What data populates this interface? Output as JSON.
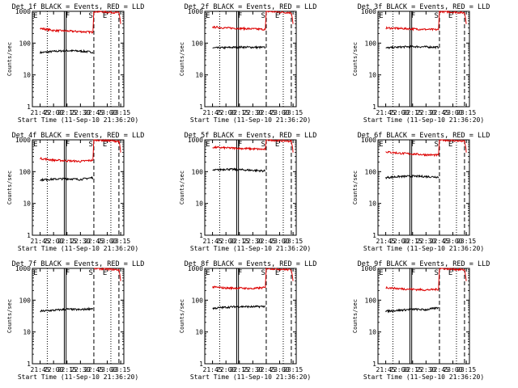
{
  "common": {
    "ylabel": "Counts/sec",
    "xlabel": "Start Time (11-Sep-10 21:36:20)",
    "x_tick_labels": [
      "21:45",
      "22:00",
      "22:15",
      "22:30",
      "22:45",
      "23:00",
      "23:15"
    ],
    "y_tick_labels": [
      "1",
      "10",
      "100",
      "1000"
    ],
    "marker_labels": [
      "E",
      "F",
      "S",
      "E"
    ],
    "colors": {
      "events": "#000000",
      "lld": "#dd0000",
      "background": "#ffffff",
      "axes": "#000000"
    }
  },
  "chart_data": [
    {
      "type": "line",
      "title": "Det 1f BLACK = Events, RED = LLD",
      "xlabel": "Start Time (11-Sep-10 21:36:20)",
      "ylabel": "Counts/sec",
      "yscale": "log",
      "ylim": [
        1,
        1000
      ],
      "x_ticks": [
        "21:45",
        "22:00",
        "22:15",
        "22:30",
        "22:45",
        "23:00",
        "23:15"
      ],
      "series": [
        {
          "name": "Events",
          "color": "#000000",
          "x": [
            "21:45",
            "22:00",
            "22:15",
            "22:30",
            "22:44"
          ],
          "values": [
            50,
            55,
            58,
            56,
            52
          ]
        },
        {
          "name": "LLD",
          "color": "#dd0000",
          "x": [
            "21:45",
            "22:00",
            "22:15",
            "22:30",
            "22:44",
            "22:45",
            "23:13",
            "23:15"
          ],
          "values": [
            290,
            250,
            240,
            230,
            220,
            1000,
            900,
            400
          ]
        }
      ]
    },
    {
      "type": "line",
      "title": "Det 2f BLACK = Events, RED = LLD",
      "xlabel": "Start Time (11-Sep-10 21:36:20)",
      "ylabel": "Counts/sec",
      "yscale": "log",
      "ylim": [
        1,
        1000
      ],
      "x_ticks": [
        "21:45",
        "22:00",
        "22:15",
        "22:30",
        "22:45",
        "23:00",
        "23:15"
      ],
      "series": [
        {
          "name": "Events",
          "color": "#000000",
          "x": [
            "21:45",
            "22:00",
            "22:15",
            "22:30",
            "22:44"
          ],
          "values": [
            70,
            72,
            75,
            74,
            73
          ]
        },
        {
          "name": "LLD",
          "color": "#dd0000",
          "x": [
            "21:45",
            "22:00",
            "22:15",
            "22:30",
            "22:44",
            "22:45",
            "23:13",
            "23:15"
          ],
          "values": [
            320,
            300,
            290,
            280,
            270,
            1000,
            900,
            400
          ]
        }
      ]
    },
    {
      "type": "line",
      "title": "Det 3f BLACK = Events, RED = LLD",
      "xlabel": "Start Time (11-Sep-10 21:36:20)",
      "ylabel": "Counts/sec",
      "yscale": "log",
      "ylim": [
        1,
        1000
      ],
      "x_ticks": [
        "21:45",
        "22:00",
        "22:15",
        "22:30",
        "22:45",
        "23:00",
        "23:15"
      ],
      "series": [
        {
          "name": "Events",
          "color": "#000000",
          "x": [
            "21:45",
            "22:00",
            "22:15",
            "22:30",
            "22:44"
          ],
          "values": [
            70,
            75,
            78,
            76,
            74
          ]
        },
        {
          "name": "LLD",
          "color": "#dd0000",
          "x": [
            "21:45",
            "22:00",
            "22:15",
            "22:30",
            "22:44",
            "22:45",
            "23:13",
            "23:15"
          ],
          "values": [
            300,
            290,
            280,
            270,
            265,
            1000,
            900,
            400
          ]
        }
      ]
    },
    {
      "type": "line",
      "title": "Det 4f BLACK = Events, RED = LLD",
      "xlabel": "Start Time (11-Sep-10 21:36:20)",
      "ylabel": "Counts/sec",
      "yscale": "log",
      "ylim": [
        1,
        1000
      ],
      "x_ticks": [
        "21:45",
        "22:00",
        "22:15",
        "22:30",
        "22:45",
        "23:00",
        "23:15"
      ],
      "series": [
        {
          "name": "Events",
          "color": "#000000",
          "x": [
            "21:45",
            "22:00",
            "22:15",
            "22:30",
            "22:44"
          ],
          "values": [
            55,
            58,
            60,
            57,
            65
          ]
        },
        {
          "name": "LLD",
          "color": "#dd0000",
          "x": [
            "21:45",
            "22:00",
            "22:15",
            "22:30",
            "22:44",
            "22:45",
            "23:13",
            "23:15"
          ],
          "values": [
            260,
            230,
            220,
            210,
            230,
            1000,
            900,
            400
          ]
        }
      ]
    },
    {
      "type": "line",
      "title": "Det 5f BLACK = Events, RED = LLD",
      "xlabel": "Start Time (11-Sep-10 21:36:20)",
      "ylabel": "Counts/sec",
      "yscale": "log",
      "ylim": [
        1,
        1000
      ],
      "x_ticks": [
        "21:45",
        "22:00",
        "22:15",
        "22:30",
        "22:45",
        "23:00",
        "23:15"
      ],
      "series": [
        {
          "name": "Events",
          "color": "#000000",
          "x": [
            "21:45",
            "22:00",
            "22:15",
            "22:30",
            "22:44"
          ],
          "values": [
            110,
            120,
            115,
            110,
            105
          ]
        },
        {
          "name": "LLD",
          "color": "#dd0000",
          "x": [
            "21:45",
            "22:00",
            "22:15",
            "22:30",
            "22:44",
            "22:45",
            "23:13",
            "23:15"
          ],
          "values": [
            580,
            560,
            540,
            520,
            500,
            1000,
            900,
            400
          ]
        }
      ]
    },
    {
      "type": "line",
      "title": "Det 6f BLACK = Events, RED = LLD",
      "xlabel": "Start Time (11-Sep-10 21:36:20)",
      "ylabel": "Counts/sec",
      "yscale": "log",
      "ylim": [
        1,
        1000
      ],
      "x_ticks": [
        "21:45",
        "22:00",
        "22:15",
        "22:30",
        "22:45",
        "23:00",
        "23:15"
      ],
      "series": [
        {
          "name": "Events",
          "color": "#000000",
          "x": [
            "21:45",
            "22:00",
            "22:15",
            "22:30",
            "22:44"
          ],
          "values": [
            65,
            70,
            72,
            70,
            68
          ]
        },
        {
          "name": "LLD",
          "color": "#dd0000",
          "x": [
            "21:45",
            "22:00",
            "22:15",
            "22:30",
            "22:44",
            "22:45",
            "23:13",
            "23:15"
          ],
          "values": [
            420,
            380,
            360,
            340,
            330,
            1000,
            900,
            400
          ]
        }
      ]
    },
    {
      "type": "line",
      "title": "Det 7f BLACK = Events, RED = LLD",
      "xlabel": "Start Time (11-Sep-10 21:36:20)",
      "ylabel": "Counts/sec",
      "yscale": "log",
      "ylim": [
        1,
        1000
      ],
      "x_ticks": [
        "21:45",
        "22:00",
        "22:15",
        "22:30",
        "22:45",
        "23:00",
        "23:15"
      ],
      "series": [
        {
          "name": "Events",
          "color": "#000000",
          "x": [
            "21:45",
            "22:00",
            "22:15",
            "22:30",
            "22:44"
          ],
          "values": [
            45,
            48,
            52,
            50,
            55
          ]
        },
        {
          "name": "LLD",
          "color": "#dd0000",
          "x": [
            "22:45",
            "23:13",
            "23:15"
          ],
          "values": [
            1000,
            900,
            400
          ]
        }
      ]
    },
    {
      "type": "line",
      "title": "Det 8f BLACK = Events, RED = LLD",
      "xlabel": "Start Time (11-Sep-10 21:36:20)",
      "ylabel": "Counts/sec",
      "yscale": "log",
      "ylim": [
        1,
        1000
      ],
      "x_ticks": [
        "21:45",
        "22:00",
        "22:15",
        "22:30",
        "22:45",
        "23:00",
        "23:15"
      ],
      "series": [
        {
          "name": "Events",
          "color": "#000000",
          "x": [
            "21:45",
            "22:00",
            "22:15",
            "22:30",
            "22:44"
          ],
          "values": [
            55,
            60,
            63,
            62,
            64
          ]
        },
        {
          "name": "LLD",
          "color": "#dd0000",
          "x": [
            "21:45",
            "22:00",
            "22:15",
            "22:30",
            "22:44",
            "22:45",
            "23:13",
            "23:15"
          ],
          "values": [
            260,
            240,
            240,
            230,
            250,
            1000,
            900,
            400
          ]
        }
      ]
    },
    {
      "type": "line",
      "title": "Det 9f BLACK = Events, RED = LLD",
      "xlabel": "Start Time (11-Sep-10 21:36:20)",
      "ylabel": "Counts/sec",
      "yscale": "log",
      "ylim": [
        1,
        1000
      ],
      "x_ticks": [
        "21:45",
        "22:00",
        "22:15",
        "22:30",
        "22:45",
        "23:00",
        "23:15"
      ],
      "series": [
        {
          "name": "Events",
          "color": "#000000",
          "x": [
            "21:45",
            "22:00",
            "22:15",
            "22:30",
            "22:44"
          ],
          "values": [
            45,
            48,
            52,
            50,
            58
          ]
        },
        {
          "name": "LLD",
          "color": "#dd0000",
          "x": [
            "21:45",
            "22:00",
            "22:15",
            "22:30",
            "22:44",
            "22:45",
            "23:13",
            "23:15"
          ],
          "values": [
            250,
            230,
            220,
            210,
            220,
            1000,
            900,
            400
          ]
        }
      ]
    }
  ]
}
